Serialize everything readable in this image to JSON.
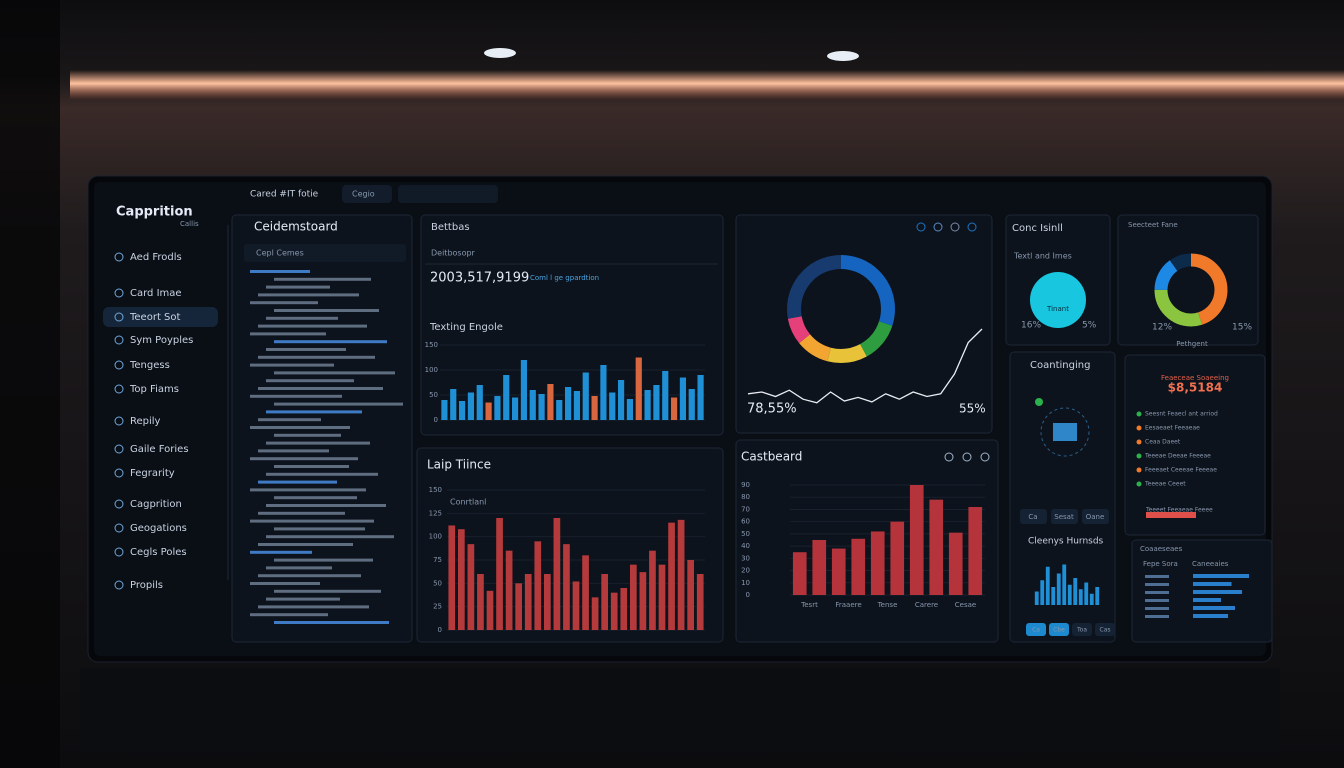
{
  "sidebar": {
    "logo": "Capprition",
    "logo_sub": "Callis",
    "items": [
      "Aed Frodls",
      "Card Imae",
      "Teeort Sot",
      "Sym Poyples",
      "Tengess",
      "Top Fiams",
      "Repily",
      "Gaile Fories",
      "Fegrarity",
      "Cagprition",
      "Geogations",
      "Cegls Poles",
      "Propils"
    ],
    "selected": 2
  },
  "toolbar": {
    "title": "Cared #IT fotie",
    "filter": "Cegio"
  },
  "tree_panel": {
    "title": "Ceidemstoard",
    "dropdown": "Cepl Cemes"
  },
  "engine_panel": {
    "title": "Bettbas",
    "subtitle": "Deitbosopr",
    "total": "2003,517,9199",
    "total_note": "Coml l ge gpardtion",
    "chart": {
      "title": "Texting Engole",
      "ylim": [
        0,
        150
      ],
      "yticks": [
        0,
        50,
        100,
        150
      ],
      "values": [
        40,
        62,
        38,
        55,
        70,
        35,
        48,
        90,
        45,
        120,
        60,
        52,
        72,
        40,
        66,
        58,
        95,
        48,
        110,
        55,
        80,
        42,
        125,
        60,
        70,
        98,
        45,
        85,
        62,
        90
      ],
      "color": "#1f8fd6",
      "highlight_color": "#d8663e",
      "highlight": [
        5,
        12,
        17,
        22,
        26
      ]
    }
  },
  "time_panel": {
    "title": "Laip Tiince",
    "legend": "Conrtlanl",
    "chart": {
      "ylim": [
        0,
        150
      ],
      "yticks": [
        0,
        25,
        50,
        75,
        100,
        125,
        150
      ],
      "values": [
        112,
        108,
        92,
        60,
        42,
        120,
        85,
        50,
        60,
        95,
        60,
        120,
        92,
        52,
        80,
        35,
        60,
        40,
        45,
        70,
        62,
        85,
        70,
        115,
        118,
        75,
        60
      ],
      "color": "#b53a3c"
    }
  },
  "donut_panel": {
    "donut": {
      "values": [
        30,
        12,
        12,
        10,
        8,
        28
      ],
      "colors": [
        "#1565c0",
        "#2e9d3f",
        "#e8c33a",
        "#f2a531",
        "#e6407a",
        "#173b6e"
      ]
    },
    "line": {
      "ylim": [
        0,
        100
      ],
      "values": [
        18,
        20,
        15,
        22,
        12,
        8,
        20,
        10,
        14,
        9,
        18,
        12,
        20,
        15,
        18,
        40,
        75,
        90
      ]
    },
    "left_value": "78,55%",
    "right_value": "55%"
  },
  "castboard": {
    "title": "Castbeard",
    "chart": {
      "ylim": [
        0,
        90
      ],
      "yticks": [
        0,
        10,
        20,
        30,
        40,
        50,
        60,
        70,
        80,
        90
      ],
      "values": [
        35,
        45,
        38,
        46,
        52,
        60,
        90,
        78,
        51,
        72
      ],
      "color": "#b5333a",
      "x_labels": [
        "Tesrt",
        "Fraaere",
        "Tense",
        "Carere",
        "Cesae"
      ]
    }
  },
  "conc_panel": {
    "title": "Conc Isinll",
    "subtitle": "Textl and Imes",
    "ring_label": "Tinant",
    "left": "16%",
    "right": "5%"
  },
  "ring_panel": {
    "title": "Seecteet Fane",
    "donut": {
      "values": [
        45,
        30,
        15,
        10
      ],
      "colors": [
        "#f07a2a",
        "#8bc53f",
        "#1e88e5",
        "#0c2a4a"
      ]
    },
    "left": "12%",
    "right": "15%",
    "caption": "Pethgent"
  },
  "counting_panel": {
    "title": "Coantinging",
    "buttons": [
      "Ca",
      "Sesat",
      "Oane"
    ],
    "chart_title": "Cleenys Hurnsds",
    "chart": {
      "ylim": [
        0,
        100
      ],
      "values": [
        30,
        55,
        85,
        40,
        70,
        90,
        45,
        60,
        35,
        50,
        25,
        40
      ],
      "color": "#1f8fd6"
    },
    "tabs": [
      "Ca",
      "Cbe",
      "Toa",
      "Cas"
    ]
  },
  "money_panel": {
    "title": "Feaeceae Soaeeing",
    "amount": "$8,5184",
    "items": [
      "Seesnt Feaecl ant arriod",
      "Eesaeaet Feeaeae",
      "Ceaa Daeet",
      "Teeeae Deeae Feeeae",
      "Feeeaet Ceeeae Feeeae",
      "Teeeae Ceeet"
    ],
    "note": "Teeeet Feeaeae Feeee"
  },
  "table_panel": {
    "title": "Coaaeseaes",
    "col1": "Fepe Sora",
    "col2": "Caneeaies",
    "bars": [
      80,
      55,
      70,
      40,
      60,
      50
    ]
  }
}
